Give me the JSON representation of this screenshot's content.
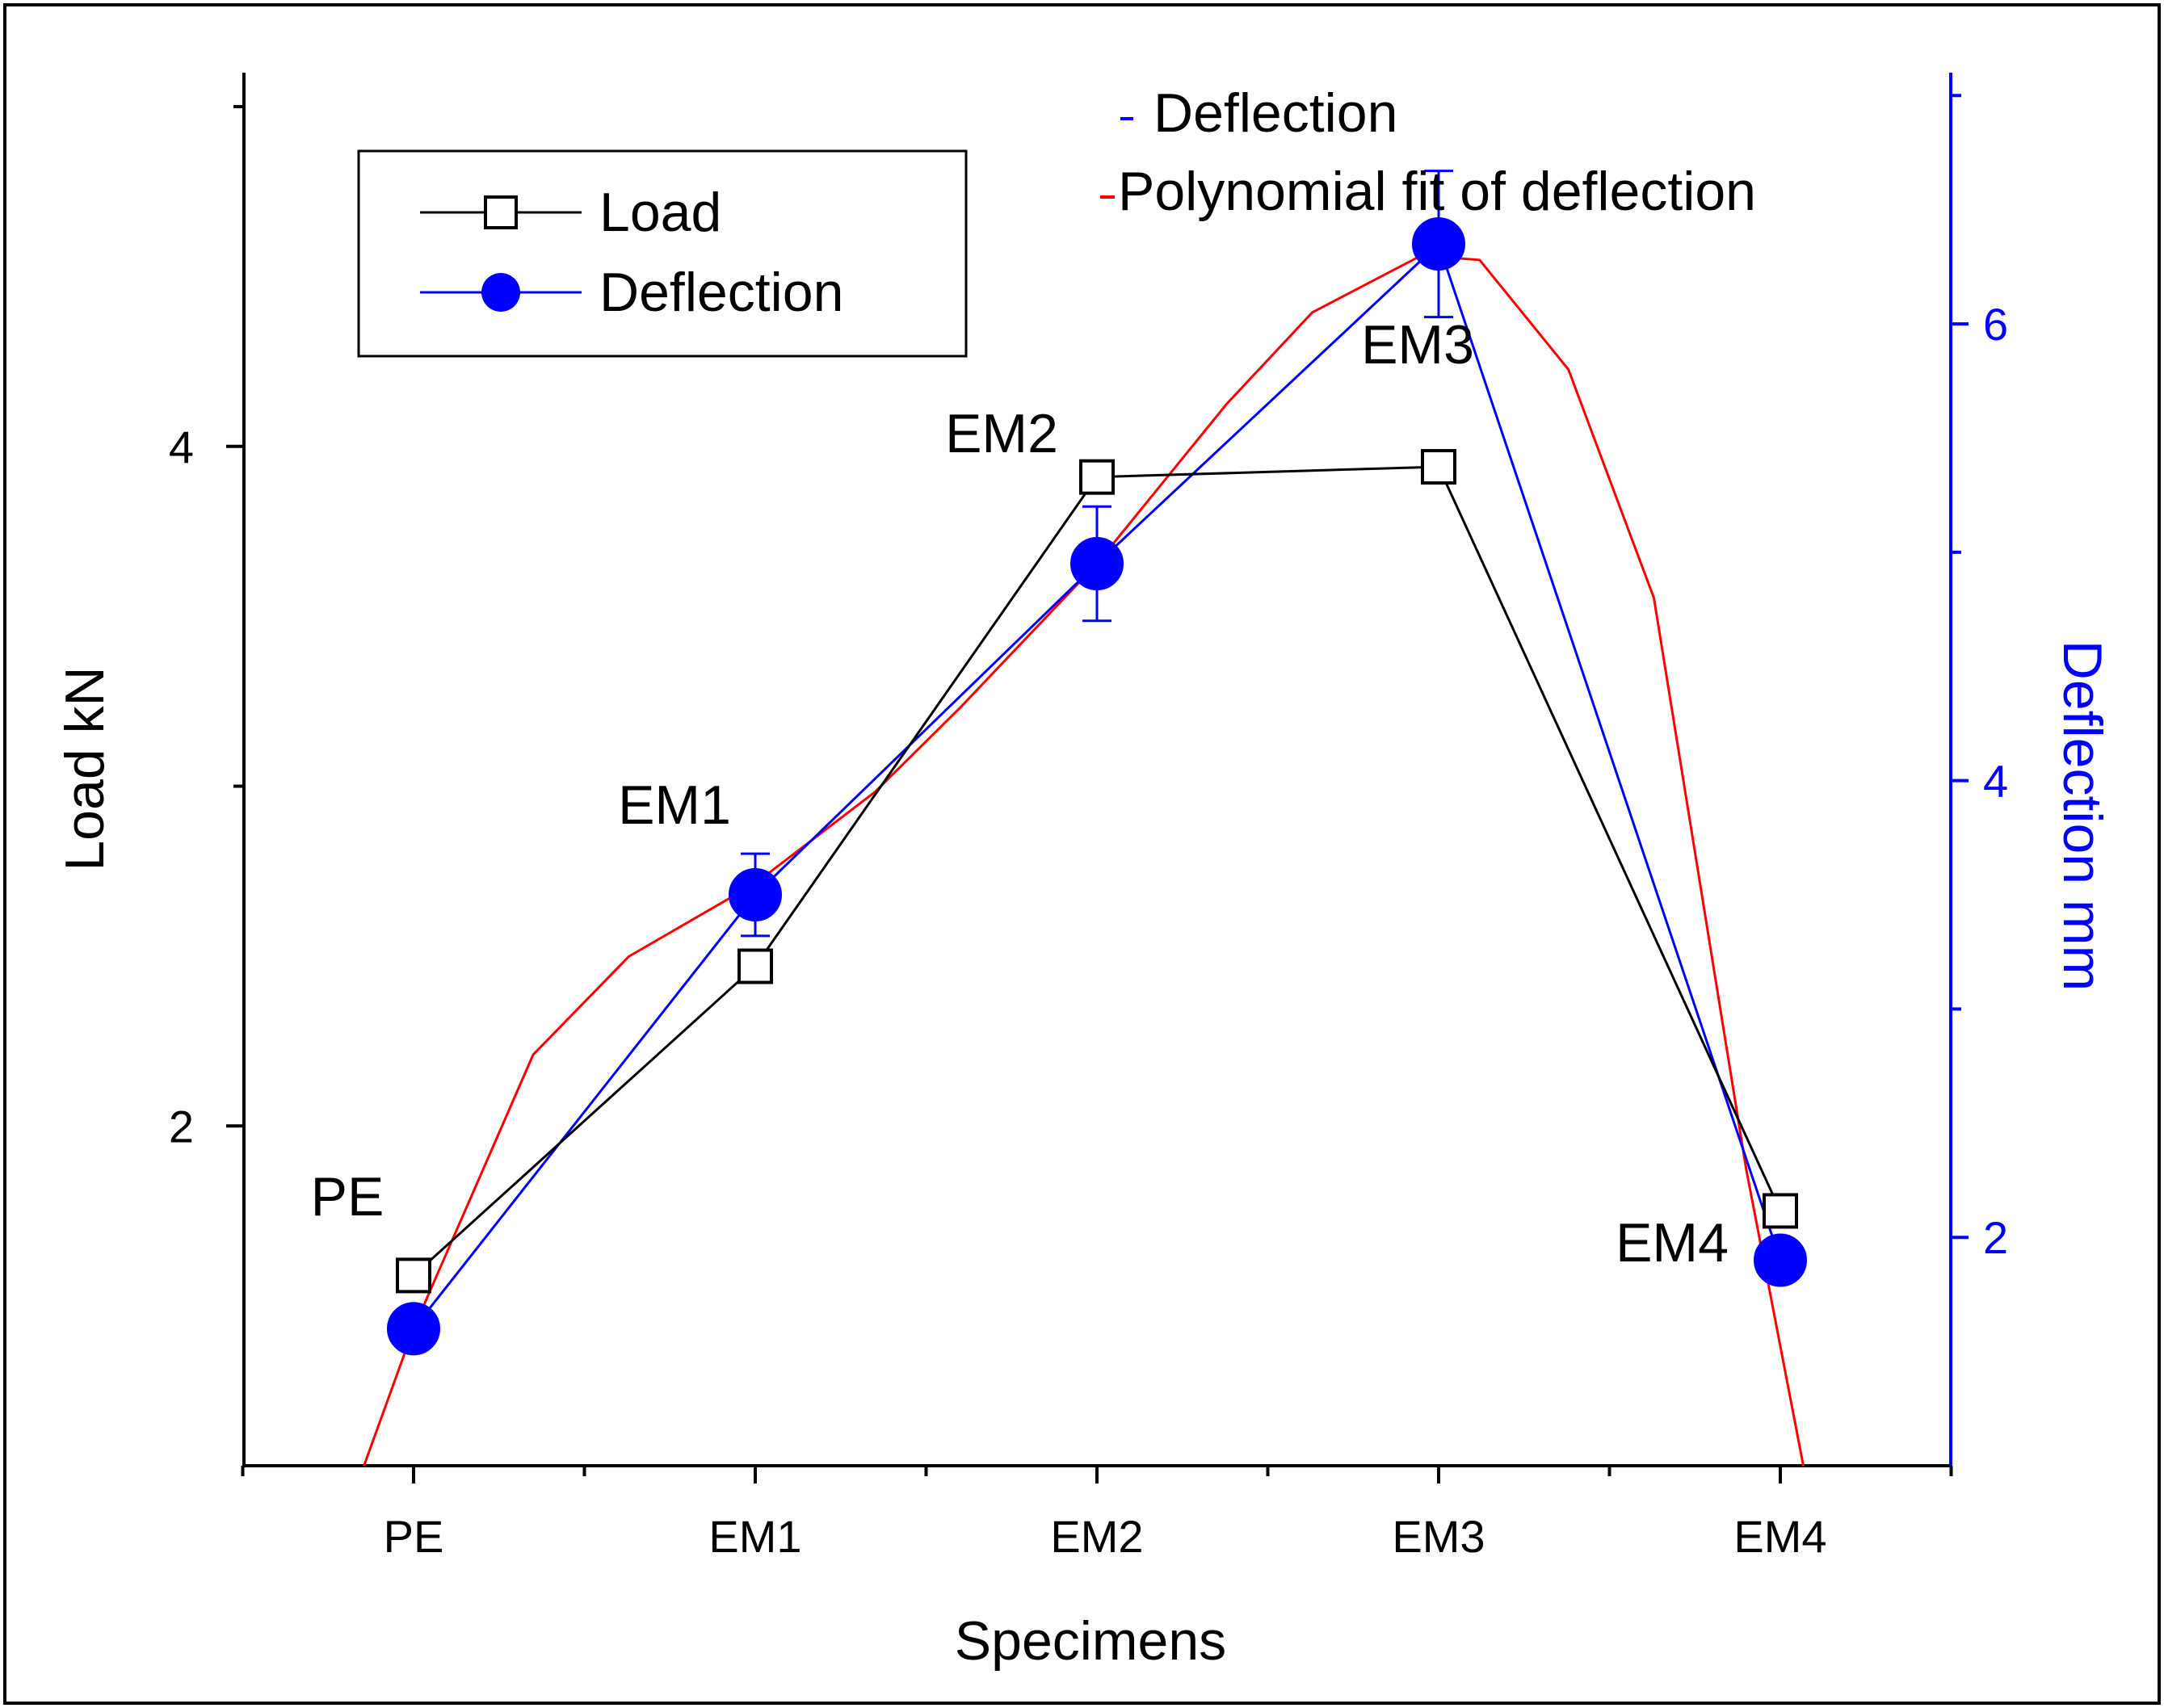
{
  "chart_data": {
    "type": "line",
    "categories": [
      "PE",
      "EM1",
      "EM2",
      "EM3",
      "EM4"
    ],
    "xlabel": "Specimens",
    "ylabel_left": "Load kN",
    "ylabel_right": "Deflection mm",
    "ylim_left": [
      1,
      5.1
    ],
    "ylim_right": [
      1,
      7.1
    ],
    "yticks_left": [
      "2",
      "4"
    ],
    "yticks_right": [
      "2",
      "4",
      "6"
    ],
    "series": [
      {
        "name": "Load",
        "axis": "left",
        "marker": "open-square",
        "color": "#000000",
        "values": [
          1.56,
          2.47,
          3.91,
          3.94,
          1.75
        ]
      },
      {
        "name": "Deflection",
        "axis": "right",
        "marker": "filled-circle",
        "color": "#0000ff",
        "values": [
          1.6,
          3.5,
          4.95,
          6.35,
          1.9
        ],
        "error": [
          null,
          0.18,
          0.25,
          0.32,
          null
        ]
      },
      {
        "name": "Polynomial fit of deflection",
        "axis": "right",
        "color": "#ff0000",
        "x": [
          -0.15,
          0.0,
          0.35,
          0.63,
          1.0,
          1.35,
          1.6,
          2.0,
          2.38,
          2.63,
          2.95,
          3.12,
          3.38,
          3.63,
          3.9,
          4.07
        ],
        "values": [
          0.98,
          1.6,
          2.8,
          3.23,
          3.55,
          3.95,
          4.32,
          4.95,
          5.65,
          6.05,
          6.3,
          6.28,
          5.8,
          4.8,
          2.3,
          0.98
        ]
      }
    ],
    "point_labels": [
      "PE",
      "EM1",
      "EM2",
      "EM3",
      "EM4"
    ],
    "legend_box": {
      "items": [
        "Load",
        "Deflection"
      ]
    },
    "legend_text": {
      "items": [
        "Deflection",
        "Polynomial fit of deflection"
      ]
    }
  },
  "colors": {
    "load": "#000000",
    "deflection": "#0000ff",
    "fit": "#ff0000"
  }
}
